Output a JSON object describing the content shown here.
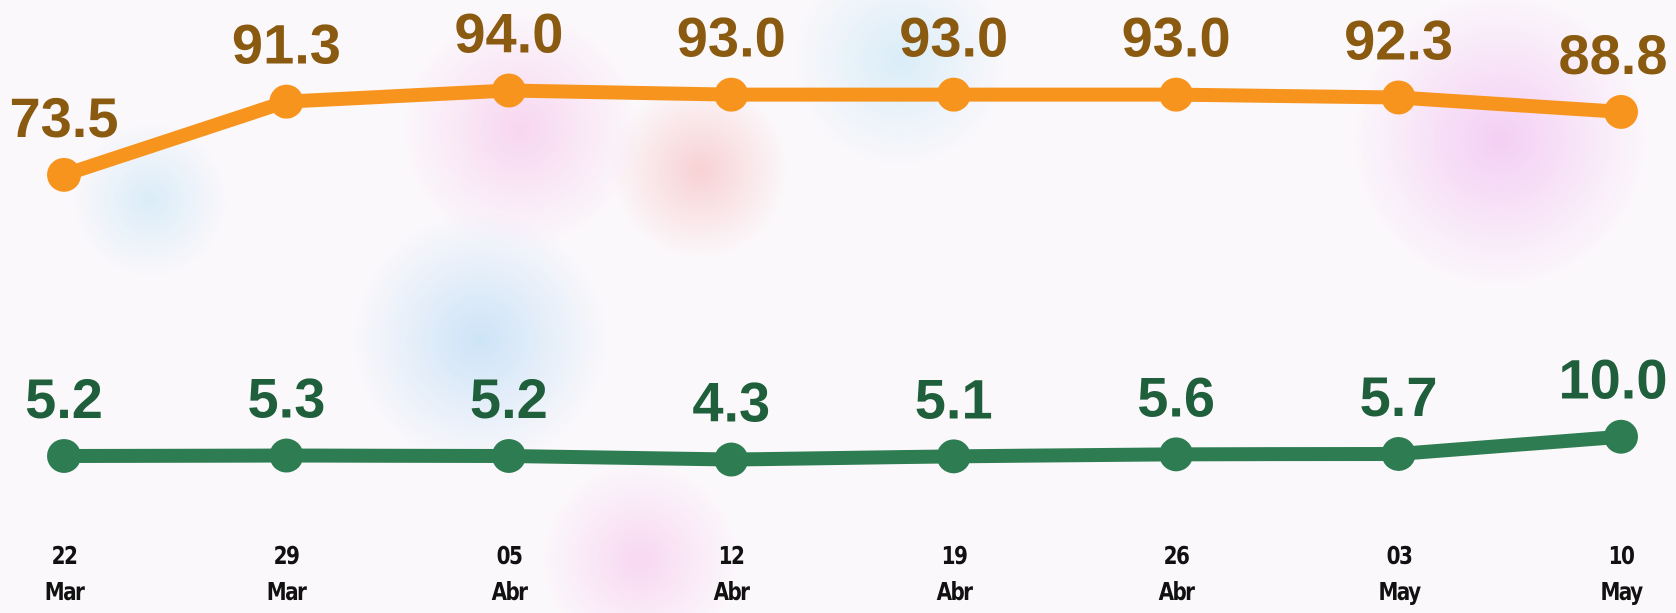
{
  "chart_data": {
    "type": "line",
    "categories": [
      "22 Mar",
      "29 Mar",
      "05 Abr",
      "12 Abr",
      "19 Abr",
      "26 Abr",
      "03 May",
      "10 May"
    ],
    "series": [
      {
        "name": null,
        "color": "#f7941d",
        "label_color": "#8a5a10",
        "axis": "y2",
        "values": [
          73.5,
          91.3,
          94.0,
          93.0,
          93.0,
          93.0,
          92.3,
          88.8
        ],
        "value_labels": [
          "73.5",
          "91.3",
          "94.0",
          "93.0",
          "93.0",
          "93.0",
          "92.3",
          "88.8"
        ]
      },
      {
        "name": null,
        "color": "#2e7d52",
        "label_color": "#1f5f3c",
        "values": [
          5.2,
          5.3,
          5.2,
          4.3,
          5.1,
          5.6,
          5.7,
          10.0
        ],
        "value_labels": [
          "5.2",
          "5.3",
          "5.2",
          "4.3",
          "5.1",
          "5.6",
          "5.7",
          "10.0"
        ]
      }
    ],
    "ylim": [
      -34,
      119
    ],
    "y2lim": [
      -33,
      116
    ],
    "grid": false
  }
}
